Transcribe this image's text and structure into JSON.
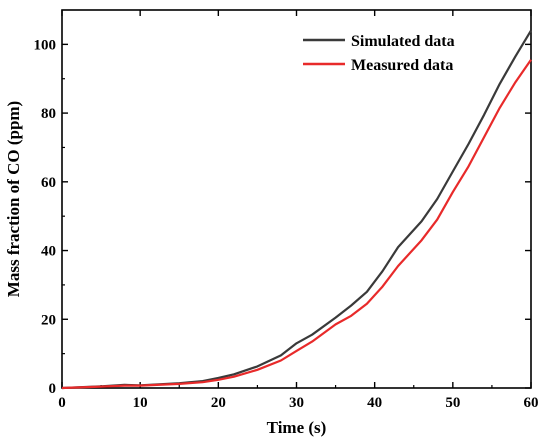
{
  "chart_data": {
    "type": "line",
    "xlabel": "Time (s)",
    "ylabel": "Mass fraction of CO (ppm)",
    "xlim": [
      0,
      60
    ],
    "ylim": [
      0,
      110
    ],
    "xticks": [
      0,
      10,
      20,
      30,
      40,
      50,
      60
    ],
    "yticks": [
      0,
      20,
      40,
      60,
      80,
      100
    ],
    "grid": false,
    "legend_position": "top-right",
    "series": [
      {
        "name": "Simulated data",
        "color": "#3a3a3a",
        "x": [
          0,
          5,
          8,
          10,
          15,
          18,
          20,
          22,
          25,
          28,
          30,
          32,
          35,
          37,
          39,
          41,
          43,
          46,
          48,
          50,
          52,
          54,
          56,
          58,
          60
        ],
        "y": [
          0,
          0.5,
          0.9,
          0.8,
          1.4,
          2.0,
          2.9,
          4.0,
          6.3,
          9.5,
          13.0,
          15.5,
          20.5,
          24.0,
          28.0,
          34.0,
          41.0,
          48.5,
          55.0,
          63.0,
          71.0,
          79.5,
          88.5,
          96.5,
          104.0
        ]
      },
      {
        "name": "Measured data",
        "color": "#e82a2a",
        "x": [
          0,
          5,
          8,
          10,
          15,
          18,
          20,
          22,
          25,
          28,
          30,
          32,
          35,
          37,
          39,
          41,
          43,
          46,
          48,
          50,
          52,
          54,
          56,
          58,
          60
        ],
        "y": [
          0,
          0.4,
          0.7,
          0.7,
          1.2,
          1.7,
          2.4,
          3.3,
          5.3,
          8.0,
          10.8,
          13.5,
          18.5,
          21.0,
          24.5,
          29.5,
          35.5,
          43.0,
          49.0,
          57.0,
          64.5,
          73.0,
          81.5,
          89.0,
          95.5
        ]
      }
    ]
  }
}
